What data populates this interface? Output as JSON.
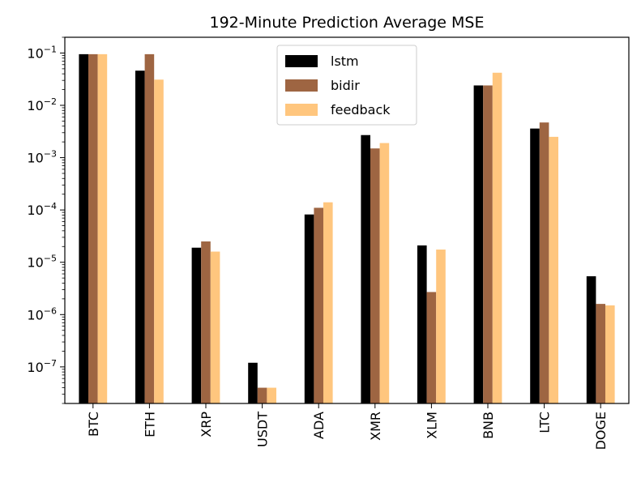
{
  "chart_data": {
    "type": "bar",
    "title": "192-Minute Prediction Average MSE",
    "xlabel": "",
    "ylabel": "",
    "yscale": "log",
    "ylim": [
      2e-08,
      0.2
    ],
    "categories": [
      "BTC",
      "ETH",
      "XRP",
      "USDT",
      "ADA",
      "XMR",
      "XLM",
      "BNB",
      "LTC",
      "DOGE"
    ],
    "yticks": [
      {
        "value": 1e-07,
        "base": "10",
        "exp": "−7"
      },
      {
        "value": 1e-06,
        "base": "10",
        "exp": "−6"
      },
      {
        "value": 1e-05,
        "base": "10",
        "exp": "−5"
      },
      {
        "value": 0.0001,
        "base": "10",
        "exp": "−4"
      },
      {
        "value": 0.001,
        "base": "10",
        "exp": "−3"
      },
      {
        "value": 0.01,
        "base": "10",
        "exp": "−2"
      },
      {
        "value": 0.1,
        "base": "10",
        "exp": "−1"
      }
    ],
    "series": [
      {
        "name": "lstm",
        "color": "#000000",
        "values": [
          0.095,
          0.046,
          1.9e-05,
          1.2e-07,
          8.2e-05,
          0.0027,
          2.1e-05,
          0.024,
          0.0036,
          5.4e-06
        ]
      },
      {
        "name": "bidir",
        "color": "#9e6542",
        "values": [
          0.095,
          0.095,
          2.5e-05,
          4e-08,
          0.00011,
          0.0015,
          2.7e-06,
          0.024,
          0.0047,
          1.6e-06
        ]
      },
      {
        "name": "feedback",
        "color": "#ffc67e",
        "values": [
          0.095,
          0.031,
          1.6e-05,
          4e-08,
          0.00014,
          0.0019,
          1.75e-05,
          0.042,
          0.0025,
          1.5e-06
        ]
      }
    ],
    "legend_position": "top-center",
    "grid": false
  }
}
